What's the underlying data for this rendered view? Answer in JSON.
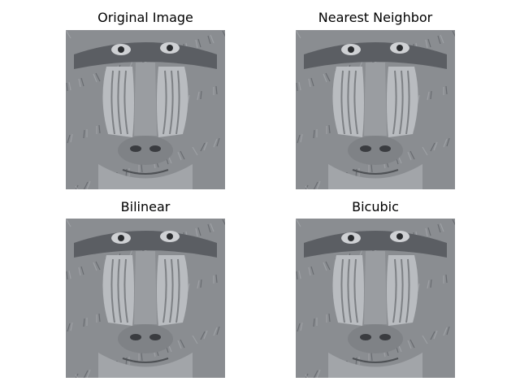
{
  "figure": {
    "panels": [
      {
        "title": "Original Image",
        "subject": "mandrill-face-grayscale"
      },
      {
        "title": "Nearest Neighbor",
        "subject": "mandrill-face-grayscale"
      },
      {
        "title": "Bilinear",
        "subject": "mandrill-face-grayscale"
      },
      {
        "title": "Bicubic",
        "subject": "mandrill-face-grayscale"
      }
    ]
  },
  "colors": {
    "background": "#ffffff",
    "fur_dark": "#5b5e63",
    "fur_mid": "#8a8d91",
    "cheek": "#b9bcc0",
    "nose": "#9a9da1",
    "eye": "#2a2c2f"
  }
}
